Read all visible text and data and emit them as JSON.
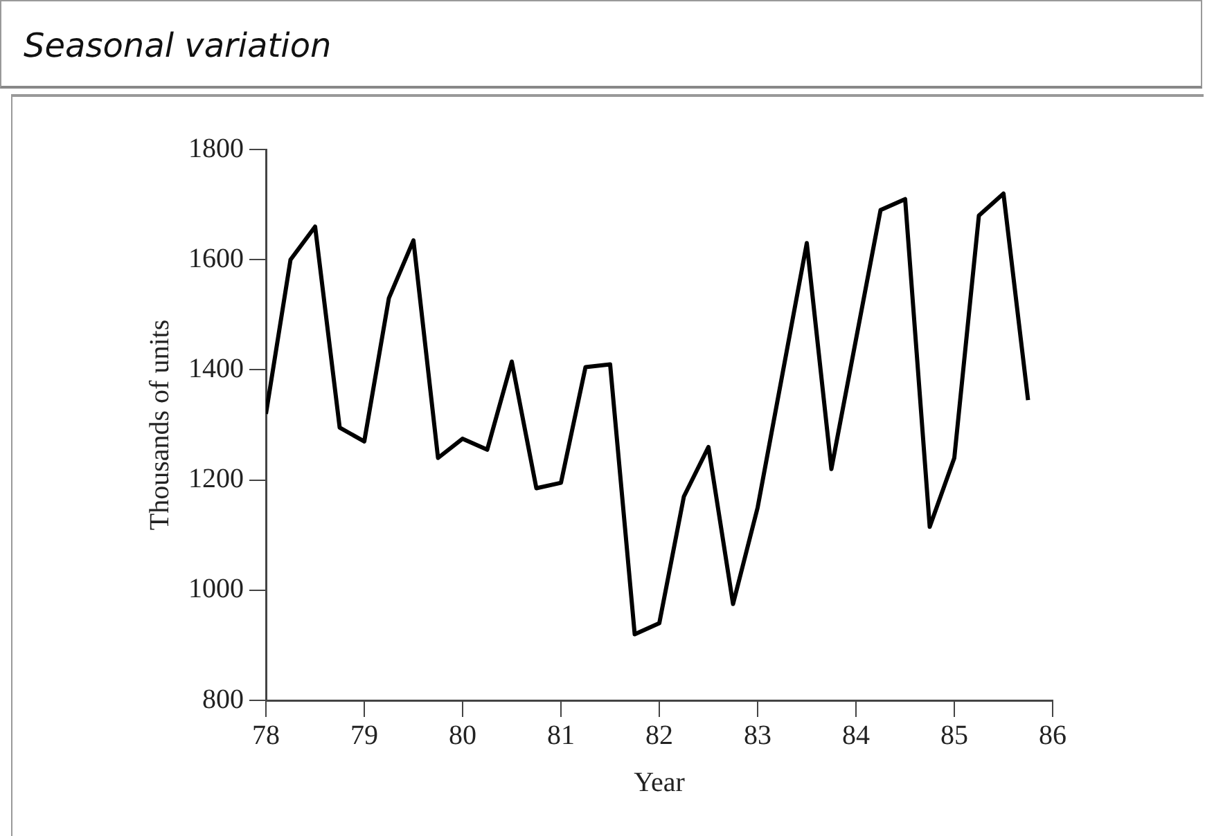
{
  "chart_data": {
    "type": "line",
    "title": "Seasonal variation",
    "xlabel": "Year",
    "ylabel": "Thousands of units",
    "x": [
      78,
      78.25,
      78.5,
      78.75,
      79,
      79.25,
      79.5,
      79.75,
      80,
      80.25,
      80.5,
      80.75,
      81,
      81.25,
      81.5,
      81.75,
      82,
      82.25,
      82.5,
      82.75,
      83,
      83.25,
      83.5,
      83.75,
      84,
      84.25,
      84.5,
      84.75,
      85,
      85.25,
      85.5,
      85.75
    ],
    "series": [
      {
        "color": "#000000",
        "values": [
          1320,
          1600,
          1660,
          1295,
          1270,
          1530,
          1635,
          1240,
          1275,
          1255,
          1415,
          1185,
          1195,
          1405,
          1410,
          920,
          940,
          1170,
          1260,
          975,
          1150,
          1390,
          1630,
          1220,
          1455,
          1690,
          1710,
          1115,
          1240,
          1680,
          1720,
          1345
        ]
      }
    ],
    "xlim": [
      78,
      86
    ],
    "xticks": [
      78,
      79,
      80,
      81,
      82,
      83,
      84,
      85,
      86
    ],
    "ylim": [
      800,
      1800
    ],
    "yticks": [
      800,
      1000,
      1200,
      1400,
      1600,
      1800
    ],
    "grid": false,
    "legend": false,
    "marker": "none",
    "line_style": "solid"
  }
}
